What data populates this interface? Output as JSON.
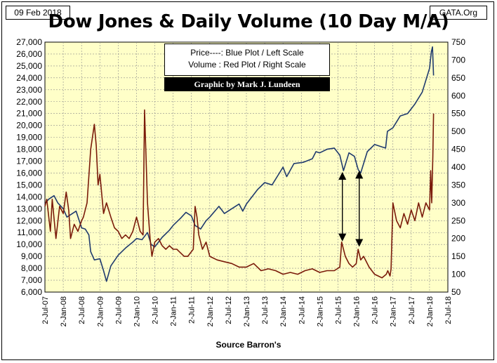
{
  "header": {
    "date": "09 Feb 2018",
    "site": "GATA.Org",
    "title": "Dow Jones & Daily Volume (10 Day M/A)"
  },
  "legend": {
    "line1": "Price----: Blue Plot / Left Scale",
    "line2": "Volume : Red Plot / Right Scale",
    "credit": "Graphic by Mark J. Lundeen"
  },
  "footer": {
    "source": "Source Barron's"
  },
  "colors": {
    "plot_bg": "#ffffc8",
    "price": "#1f3a6e",
    "volume": "#7a1a0a",
    "grid": "#8c8c8c"
  },
  "chart_data": {
    "type": "line",
    "title": "Dow Jones & Daily Volume (10 Day M/A)",
    "xlabel": "Source Barron's",
    "x_ticks": [
      "2-Jul-07",
      "2-Jan-08",
      "2-Jul-08",
      "2-Jan-09",
      "2-Jul-09",
      "2-Jan-10",
      "2-Jul-10",
      "2-Jan-11",
      "2-Jul-11",
      "2-Jan-12",
      "2-Jul-12",
      "2-Jan-13",
      "2-Jul-13",
      "2-Jan-14",
      "2-Jul-14",
      "2-Jan-15",
      "2-Jul-15",
      "2-Jan-16",
      "2-Jul-16",
      "2-Jan-17",
      "2-Jul-17",
      "2-Jan-18",
      "2-Jul-18"
    ],
    "y_left": {
      "min": 6000,
      "max": 27000,
      "step": 1000
    },
    "y_right": {
      "min": 50,
      "max": 750,
      "step": 50
    },
    "grid": true,
    "series": [
      {
        "name": "Price",
        "axis": "left",
        "x": [
          2007.5,
          2007.6,
          2007.75,
          2007.85,
          2008.0,
          2008.1,
          2008.2,
          2008.35,
          2008.5,
          2008.6,
          2008.7,
          2008.75,
          2008.85,
          2009.0,
          2009.1,
          2009.18,
          2009.3,
          2009.5,
          2009.7,
          2009.9,
          2010.0,
          2010.15,
          2010.3,
          2010.4,
          2010.5,
          2010.7,
          2010.9,
          2011.0,
          2011.2,
          2011.35,
          2011.5,
          2011.6,
          2011.75,
          2011.9,
          2012.0,
          2012.25,
          2012.4,
          2012.6,
          2012.8,
          2012.9,
          2013.0,
          2013.3,
          2013.5,
          2013.7,
          2013.9,
          2014.0,
          2014.1,
          2014.3,
          2014.55,
          2014.8,
          2014.9,
          2015.0,
          2015.2,
          2015.4,
          2015.55,
          2015.65,
          2015.8,
          2015.95,
          2016.05,
          2016.12,
          2016.3,
          2016.5,
          2016.7,
          2016.8,
          2016.85,
          2017.0,
          2017.2,
          2017.4,
          2017.6,
          2017.8,
          2018.0,
          2018.05,
          2018.08,
          2018.11
        ],
        "y": [
          13400,
          13800,
          14100,
          13500,
          13000,
          12300,
          12500,
          12800,
          11400,
          11300,
          10800,
          9400,
          8700,
          8800,
          7800,
          6900,
          8200,
          9100,
          9700,
          10200,
          10500,
          10400,
          11000,
          10000,
          9800,
          10600,
          11200,
          11600,
          12200,
          12700,
          12400,
          11600,
          11300,
          12000,
          12300,
          13200,
          12600,
          13000,
          13400,
          12800,
          13400,
          14600,
          15200,
          15000,
          16000,
          16500,
          15700,
          16800,
          16900,
          17200,
          17800,
          17700,
          18000,
          18100,
          17500,
          16200,
          17700,
          17400,
          16300,
          16000,
          17800,
          18400,
          18200,
          18100,
          19500,
          19800,
          20800,
          21000,
          21800,
          22800,
          24800,
          26200,
          26600,
          24200
        ]
      },
      {
        "name": "Volume",
        "axis": "right",
        "x": [
          2007.5,
          2007.55,
          2007.65,
          2007.7,
          2007.8,
          2007.9,
          2008.0,
          2008.08,
          2008.15,
          2008.2,
          2008.3,
          2008.4,
          2008.5,
          2008.55,
          2008.65,
          2008.75,
          2008.85,
          2008.9,
          2008.95,
          2009.0,
          2009.1,
          2009.18,
          2009.3,
          2009.4,
          2009.5,
          2009.6,
          2009.7,
          2009.8,
          2009.9,
          2010.0,
          2010.1,
          2010.18,
          2010.22,
          2010.3,
          2010.37,
          2010.42,
          2010.5,
          2010.6,
          2010.7,
          2010.8,
          2010.9,
          2011.0,
          2011.1,
          2011.2,
          2011.3,
          2011.4,
          2011.55,
          2011.6,
          2011.65,
          2011.7,
          2011.8,
          2011.9,
          2012.0,
          2012.2,
          2012.4,
          2012.6,
          2012.8,
          2013.0,
          2013.2,
          2013.4,
          2013.6,
          2013.8,
          2014.0,
          2014.2,
          2014.4,
          2014.6,
          2014.8,
          2015.0,
          2015.2,
          2015.4,
          2015.55,
          2015.6,
          2015.7,
          2015.8,
          2015.9,
          2016.0,
          2016.05,
          2016.12,
          2016.2,
          2016.35,
          2016.5,
          2016.6,
          2016.7,
          2016.82,
          2016.86,
          2016.92,
          2016.95,
          2017.0,
          2017.1,
          2017.2,
          2017.3,
          2017.4,
          2017.5,
          2017.6,
          2017.7,
          2017.8,
          2017.9,
          2018.0,
          2018.03,
          2018.06,
          2018.09,
          2018.11
        ],
        "y": [
          290,
          310,
          220,
          310,
          200,
          290,
          270,
          330,
          280,
          200,
          240,
          220,
          250,
          260,
          300,
          450,
          520,
          460,
          350,
          380,
          270,
          300,
          260,
          230,
          220,
          200,
          210,
          200,
          220,
          260,
          220,
          210,
          560,
          300,
          200,
          150,
          190,
          200,
          180,
          170,
          180,
          170,
          170,
          160,
          150,
          150,
          170,
          290,
          260,
          210,
          170,
          190,
          150,
          140,
          135,
          130,
          120,
          120,
          130,
          110,
          115,
          110,
          100,
          105,
          100,
          110,
          115,
          105,
          110,
          110,
          120,
          190,
          150,
          130,
          120,
          130,
          170,
          140,
          150,
          120,
          100,
          95,
          90,
          100,
          110,
          95,
          115,
          300,
          250,
          230,
          270,
          240,
          280,
          250,
          300,
          260,
          300,
          280,
          390,
          300,
          430,
          550
        ]
      }
    ]
  }
}
